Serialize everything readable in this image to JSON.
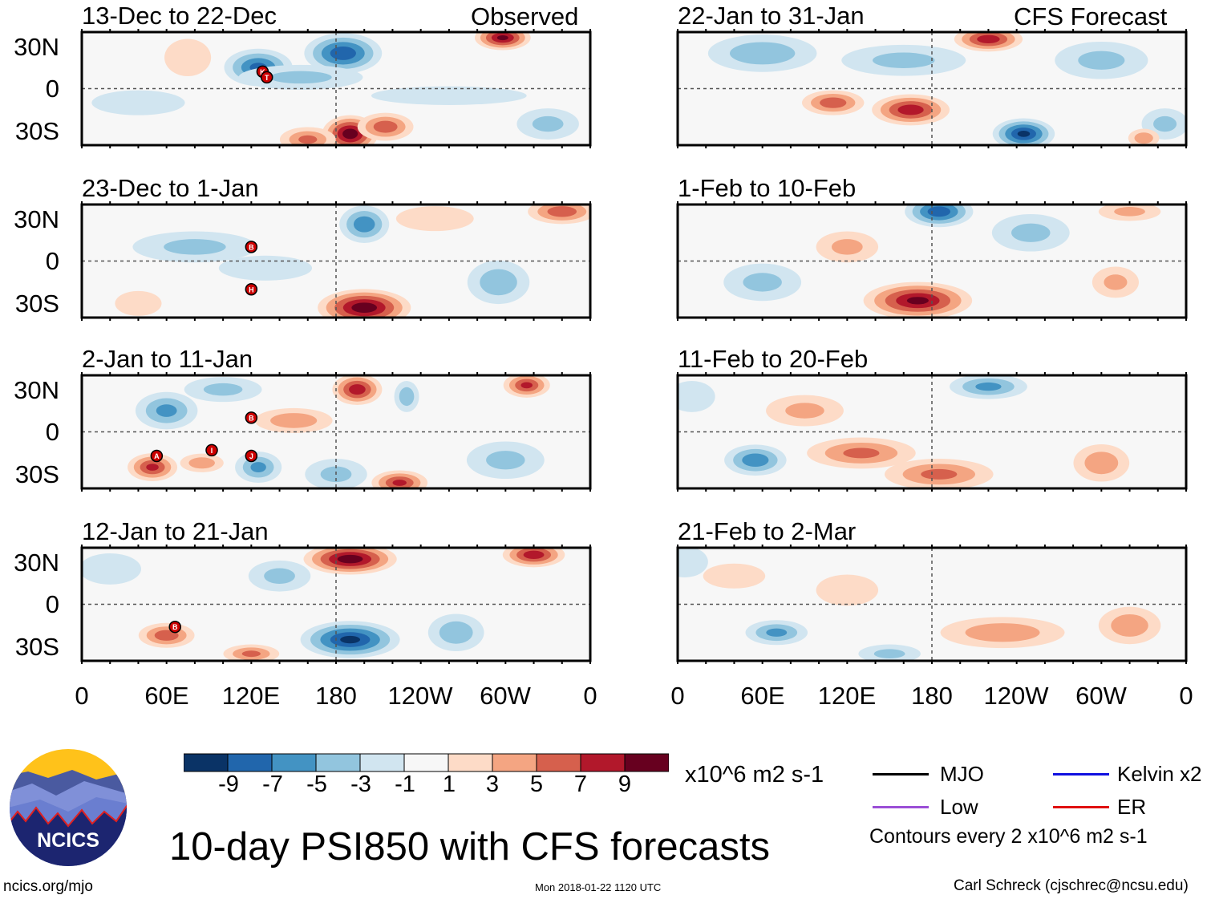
{
  "title": "10-day PSI850 with CFS forecasts",
  "left_header": "Observed",
  "right_header": "CFS Forecast",
  "units": "x10^6 m2 s-1",
  "contour_note": "Contours every 2 x10^6 m2 s-1",
  "footer": {
    "url": "ncics.org/mjo",
    "timestamp": "Mon 2018-01-22 1120 UTC",
    "author": "Carl Schreck (cjschrec@ncsu.edu)"
  },
  "logo_text": "NCICS",
  "legend": [
    {
      "label": "MJO",
      "color": "#000000"
    },
    {
      "label": "Kelvin x2",
      "color": "#1010e0"
    },
    {
      "label": "Low",
      "color": "#9b4fd6"
    },
    {
      "label": "ER",
      "color": "#e01010"
    }
  ],
  "colorbar": {
    "labels": [
      "-9",
      "-7",
      "-5",
      "-3",
      "-1",
      "1",
      "3",
      "5",
      "7",
      "9"
    ],
    "colors": [
      "#0a3366",
      "#2166ac",
      "#4393c3",
      "#92c5de",
      "#d1e5f0",
      "#f7f7f7",
      "#fddbc7",
      "#f4a582",
      "#d6604d",
      "#b2182b",
      "#67001f"
    ]
  },
  "chart_data": {
    "type": "heatmap",
    "variable": "PSI850 anomaly",
    "y_ticks": [
      "30N",
      "0",
      "30S"
    ],
    "x_ticks": [
      "0",
      "60E",
      "120E",
      "180",
      "120W",
      "60W",
      "0"
    ],
    "panels": [
      {
        "title": "13-Dec to 22-Dec",
        "blobs": [
          [
            125,
            15,
            22,
            12,
            -7
          ],
          [
            185,
            25,
            25,
            13,
            -8
          ],
          [
            155,
            8,
            40,
            8,
            -3
          ],
          [
            190,
            -32,
            18,
            12,
            10
          ],
          [
            215,
            -27,
            18,
            9,
            6
          ],
          [
            298,
            36,
            18,
            8,
            9
          ],
          [
            160,
            -36,
            18,
            8,
            5
          ],
          [
            75,
            22,
            15,
            12,
            2
          ],
          [
            40,
            -10,
            30,
            8,
            -2
          ],
          [
            330,
            -25,
            20,
            10,
            -3
          ],
          [
            260,
            -5,
            50,
            6,
            -2
          ]
        ],
        "storms": [
          {
            "lon": 128,
            "lat": 12,
            "label": "K"
          },
          {
            "lon": 131,
            "lat": 8,
            "label": "T"
          }
        ]
      },
      {
        "title": "23-Dec to 1-Jan",
        "blobs": [
          [
            200,
            -33,
            30,
            12,
            10
          ],
          [
            200,
            26,
            16,
            12,
            -6
          ],
          [
            340,
            35,
            22,
            8,
            6
          ],
          [
            295,
            -15,
            20,
            14,
            -4
          ],
          [
            80,
            10,
            40,
            10,
            -3
          ],
          [
            130,
            -5,
            30,
            8,
            -2
          ],
          [
            40,
            -30,
            15,
            8,
            2
          ],
          [
            250,
            30,
            25,
            8,
            2
          ]
        ],
        "storms": [
          {
            "lon": 120,
            "lat": 10,
            "label": "B"
          },
          {
            "lon": 120,
            "lat": -20,
            "label": "H"
          }
        ]
      },
      {
        "title": "2-Jan to 11-Jan",
        "blobs": [
          [
            195,
            30,
            16,
            10,
            8
          ],
          [
            315,
            33,
            15,
            8,
            7
          ],
          [
            60,
            15,
            20,
            12,
            -5
          ],
          [
            50,
            -25,
            16,
            9,
            7
          ],
          [
            85,
            -22,
            14,
            6,
            4
          ],
          [
            180,
            -30,
            20,
            10,
            -3
          ],
          [
            225,
            -36,
            18,
            8,
            7
          ],
          [
            230,
            25,
            8,
            10,
            -4
          ],
          [
            150,
            8,
            25,
            8,
            4
          ],
          [
            125,
            -25,
            15,
            10,
            -5
          ],
          [
            100,
            30,
            25,
            8,
            -3
          ],
          [
            300,
            -20,
            25,
            12,
            -3
          ]
        ],
        "storms": [
          {
            "lon": 120,
            "lat": 10,
            "label": "B"
          },
          {
            "lon": 53,
            "lat": -17,
            "label": "A"
          },
          {
            "lon": 92,
            "lat": -13,
            "label": "I"
          },
          {
            "lon": 120,
            "lat": -17,
            "label": "J"
          }
        ]
      },
      {
        "title": "12-Jan to 21-Jan",
        "blobs": [
          [
            190,
            32,
            30,
            10,
            10
          ],
          [
            320,
            35,
            20,
            8,
            8
          ],
          [
            190,
            -25,
            32,
            12,
            -9
          ],
          [
            60,
            -22,
            18,
            8,
            6
          ],
          [
            140,
            20,
            20,
            10,
            -3
          ],
          [
            120,
            -35,
            18,
            6,
            5
          ],
          [
            265,
            -20,
            18,
            12,
            -4
          ],
          [
            20,
            25,
            20,
            10,
            -2
          ]
        ],
        "storms": [
          {
            "lon": 66,
            "lat": -16,
            "label": "B"
          }
        ]
      },
      {
        "title": "22-Jan to 31-Jan",
        "blobs": [
          [
            165,
            -15,
            25,
            10,
            8
          ],
          [
            110,
            -10,
            20,
            8,
            6
          ],
          [
            245,
            -32,
            20,
            10,
            -9
          ],
          [
            220,
            35,
            22,
            8,
            8
          ],
          [
            60,
            25,
            35,
            12,
            -4
          ],
          [
            300,
            20,
            30,
            12,
            -3
          ],
          [
            345,
            -25,
            15,
            10,
            -3
          ],
          [
            330,
            -35,
            10,
            6,
            4
          ],
          [
            160,
            20,
            40,
            10,
            -3
          ]
        ],
        "storms": []
      },
      {
        "title": "1-Feb to 10-Feb",
        "blobs": [
          [
            185,
            35,
            22,
            10,
            -8
          ],
          [
            170,
            -28,
            35,
            12,
            9
          ],
          [
            60,
            -15,
            25,
            12,
            -3
          ],
          [
            310,
            -15,
            15,
            10,
            3
          ],
          [
            250,
            20,
            25,
            12,
            -3
          ],
          [
            120,
            10,
            20,
            10,
            3
          ],
          [
            320,
            35,
            20,
            6,
            3
          ]
        ],
        "storms": []
      },
      {
        "title": "11-Feb to 20-Feb",
        "blobs": [
          [
            130,
            -15,
            35,
            10,
            5
          ],
          [
            185,
            -30,
            35,
            10,
            5
          ],
          [
            55,
            -20,
            20,
            10,
            -6
          ],
          [
            220,
            32,
            25,
            8,
            -5
          ],
          [
            300,
            -22,
            18,
            12,
            4
          ],
          [
            90,
            15,
            25,
            10,
            3
          ],
          [
            10,
            25,
            15,
            10,
            -2
          ]
        ],
        "storms": []
      },
      {
        "title": "21-Feb to 2-Mar",
        "blobs": [
          [
            70,
            -20,
            20,
            8,
            -5
          ],
          [
            230,
            -20,
            40,
            10,
            4
          ],
          [
            320,
            -15,
            20,
            12,
            4
          ],
          [
            120,
            10,
            20,
            10,
            2
          ],
          [
            150,
            -35,
            20,
            6,
            -3
          ],
          [
            5,
            30,
            15,
            10,
            -2
          ],
          [
            40,
            20,
            20,
            8,
            2
          ]
        ],
        "storms": []
      }
    ]
  }
}
